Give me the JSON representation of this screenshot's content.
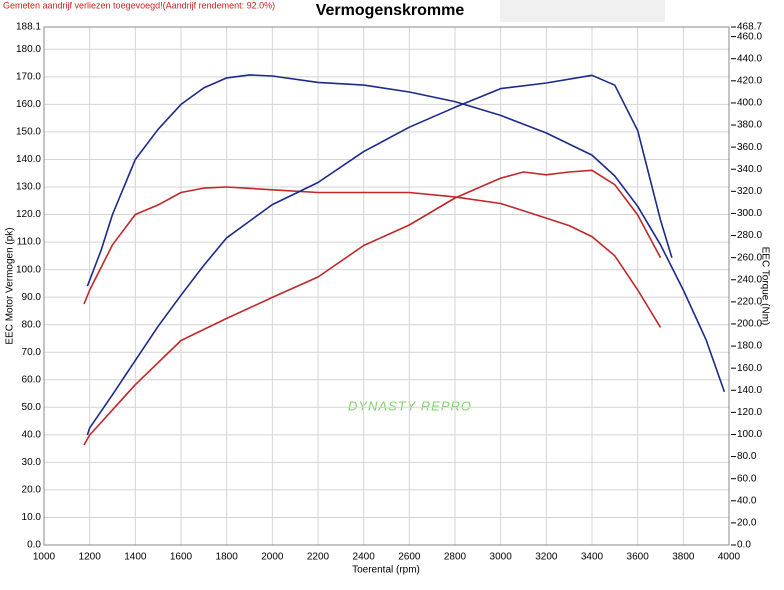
{
  "chart_data": {
    "type": "line",
    "title": "Vermogenskromme",
    "note": "Gemeten aandrijf verliezen toegevoegd!(Aandrijf rendement: 92.0%)",
    "watermark": "DYNASTY REPRO",
    "xlabel": "Toerental (rpm)",
    "ylabel": "EEC Motor Vermogen (pk)",
    "y2label": "EEC Torque (Nm)",
    "grid": true,
    "xlim": [
      1000,
      4000
    ],
    "xticks": [
      1000,
      1200,
      1400,
      1600,
      1800,
      2000,
      2200,
      2400,
      2600,
      2800,
      3000,
      3200,
      3400,
      3600,
      3800,
      4000
    ],
    "ylim": [
      0,
      188.1
    ],
    "yticks": [
      {
        "value": 0,
        "label": "0.0"
      },
      {
        "value": 10,
        "label": "10.0"
      },
      {
        "value": 20,
        "label": "20.0"
      },
      {
        "value": 30,
        "label": "30.0"
      },
      {
        "value": 40,
        "label": "40.0"
      },
      {
        "value": 50,
        "label": "50.0"
      },
      {
        "value": 60,
        "label": "60.0"
      },
      {
        "value": 70,
        "label": "70.0"
      },
      {
        "value": 80,
        "label": "80.0"
      },
      {
        "value": 90,
        "label": "90.0"
      },
      {
        "value": 100,
        "label": "100.0"
      },
      {
        "value": 110,
        "label": "110.0"
      },
      {
        "value": 120,
        "label": "120.0"
      },
      {
        "value": 130,
        "label": "130.0"
      },
      {
        "value": 140,
        "label": "140.0"
      },
      {
        "value": 150,
        "label": "150.0"
      },
      {
        "value": 160,
        "label": "160.0"
      },
      {
        "value": 170,
        "label": "170.0"
      },
      {
        "value": 180,
        "label": "180.0"
      },
      188.1
    ],
    "y2lim": [
      0,
      468.7
    ],
    "y2ticks": [
      {
        "value": 0,
        "label": "0.0"
      },
      {
        "value": 20,
        "label": "20.0"
      },
      {
        "value": 40,
        "label": "40.0"
      },
      {
        "value": 60,
        "label": "60.0"
      },
      {
        "value": 80,
        "label": "80.0"
      },
      {
        "value": 100,
        "label": "100.0"
      },
      {
        "value": 120,
        "label": "120.0"
      },
      {
        "value": 140,
        "label": "140.0"
      },
      {
        "value": 160,
        "label": "160.0"
      },
      {
        "value": 180,
        "label": "180.0"
      },
      {
        "value": 200,
        "label": "200.0"
      },
      {
        "value": 220,
        "label": "220.0"
      },
      {
        "value": 240,
        "label": "240.0"
      },
      {
        "value": 260,
        "label": "260.0"
      },
      {
        "value": 280,
        "label": "280.0"
      },
      {
        "value": 300,
        "label": "300.0"
      },
      {
        "value": 320,
        "label": "320.0"
      },
      {
        "value": 340,
        "label": "340.0"
      },
      {
        "value": 360,
        "label": "360.0"
      },
      {
        "value": 380,
        "label": "380.0"
      },
      {
        "value": 400,
        "label": "400.0"
      },
      {
        "value": 420,
        "label": "420.0"
      },
      {
        "value": 440,
        "label": "440.0"
      },
      {
        "value": 460,
        "label": "460.0"
      },
      468.7
    ],
    "series": [
      {
        "color": "#1b2a8a",
        "x": [
          1190,
          1250,
          1300,
          1400,
          1500,
          1600,
          1700,
          1800,
          1900,
          2000,
          2200,
          2400,
          2600,
          2800,
          3000,
          3200,
          3400,
          3500,
          3600,
          3700,
          3800,
          3900,
          3980
        ],
        "values": [
          94,
          107,
          120,
          140,
          151,
          160,
          166,
          169.6,
          170.7,
          170.3,
          168,
          167,
          164.5,
          161,
          156,
          149.6,
          141.6,
          134,
          123,
          109,
          92.6,
          74.4,
          55.6
        ]
      },
      {
        "color": "#c0282a",
        "x": [
          1175,
          1200,
          1300,
          1400,
          1500,
          1600,
          1700,
          1800,
          2000,
          2200,
          2400,
          2600,
          2800,
          3000,
          3200,
          3300,
          3400,
          3500,
          3600,
          3700
        ],
        "values": [
          87.5,
          92.6,
          109,
          120,
          123.5,
          128,
          129.6,
          130,
          129,
          128,
          128,
          128,
          126.4,
          124,
          118.7,
          116,
          112,
          105,
          92.6,
          79
        ]
      },
      {
        "color": "#1b2a8a",
        "axis": "y2",
        "x": [
          1190,
          1200,
          1300,
          1400,
          1500,
          1600,
          1700,
          1800,
          2000,
          2200,
          2400,
          2600,
          2800,
          3000,
          3200,
          3400,
          3500,
          3600,
          3700,
          3750
        ],
        "values": [
          99.5,
          106,
          136,
          167,
          198,
          226,
          253,
          278,
          308,
          328,
          356,
          378,
          396,
          413,
          418,
          425,
          416,
          375,
          294,
          260
        ]
      },
      {
        "color": "#c0282a",
        "axis": "y2",
        "x": [
          1175,
          1200,
          1400,
          1600,
          1800,
          2000,
          2200,
          2400,
          2600,
          2800,
          3000,
          3100,
          3200,
          3300,
          3400,
          3500,
          3600,
          3700
        ],
        "values": [
          90.5,
          99.5,
          145,
          185,
          205,
          224,
          242.5,
          271,
          289.5,
          314,
          332,
          337.5,
          335,
          337.5,
          339,
          326,
          298.6,
          260
        ]
      }
    ]
  }
}
